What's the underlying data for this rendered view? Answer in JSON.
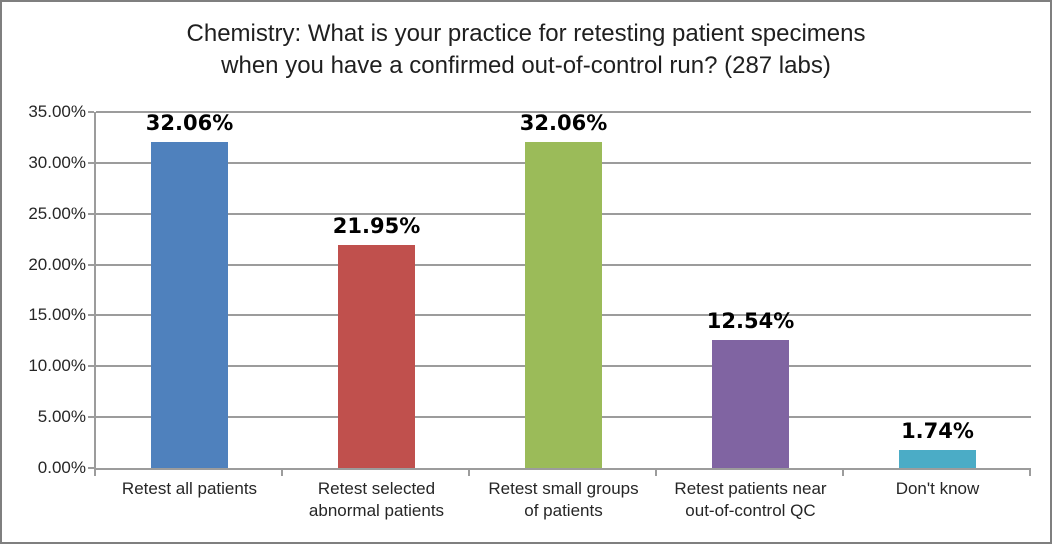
{
  "chart_data": {
    "type": "bar",
    "title": "Chemistry: What is your practice for retesting patient specimens\nwhen you have a confirmed out-of-control run? (287 labs)",
    "categories": [
      "Retest all patients",
      "Retest selected\nabnormal patients",
      "Retest small groups\nof patients",
      "Retest patients near\nout-of-control QC",
      "Don't know"
    ],
    "values": [
      32.06,
      21.95,
      32.06,
      12.54,
      1.74
    ],
    "data_labels": [
      "32.06%",
      "21.95%",
      "32.06%",
      "12.54%",
      "1.74%"
    ],
    "bar_colors": [
      "#4F81BD",
      "#C0504D",
      "#9BBB59",
      "#8064A2",
      "#4BACC6"
    ],
    "y_ticks": [
      "0.00%",
      "5.00%",
      "10.00%",
      "15.00%",
      "20.00%",
      "25.00%",
      "30.00%",
      "35.00%"
    ],
    "ylim": [
      0,
      35
    ],
    "xlabel": "",
    "ylabel": "",
    "grid": true,
    "legend_position": "none"
  },
  "colors": {
    "gridline": "#9C9C9C",
    "axis": "#9C9C9C",
    "figure_border": "#7F7F7F",
    "title_text": "#1F1F1F",
    "tick_label_text": "#262626",
    "data_label_text": "#000000"
  }
}
